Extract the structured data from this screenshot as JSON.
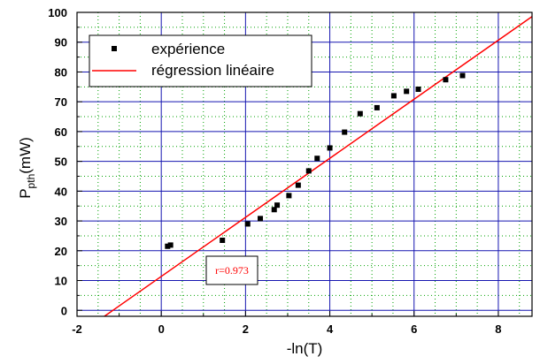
{
  "chart_data": {
    "type": "scatter",
    "xlabel": "-ln(T)",
    "ylabel_main": "P",
    "ylabel_sub": "pth",
    "ylabel_unit": "(mW)",
    "xlim": [
      -2,
      8.8
    ],
    "ylim": [
      -2,
      100
    ],
    "xticks": [
      "-2",
      "0",
      "2",
      "4",
      "6",
      "8"
    ],
    "xtick_values": [
      -2,
      0,
      2,
      4,
      6,
      8
    ],
    "yticks": [
      "0",
      "10",
      "20",
      "30",
      "40",
      "50",
      "60",
      "70",
      "80",
      "90",
      "100"
    ],
    "ytick_values": [
      0,
      10,
      20,
      30,
      40,
      50,
      60,
      70,
      80,
      90,
      100
    ],
    "grid": true,
    "legend_position": "top-left",
    "series": [
      {
        "name": "expérience",
        "kind": "points",
        "color": "#000000",
        "points": [
          [
            0.15,
            21.5
          ],
          [
            0.22,
            21.9
          ],
          [
            1.45,
            23.5
          ],
          [
            2.05,
            29
          ],
          [
            2.35,
            30.8
          ],
          [
            2.68,
            33.8
          ],
          [
            2.75,
            35.3
          ],
          [
            3.03,
            38.5
          ],
          [
            3.25,
            42
          ],
          [
            3.5,
            46.8
          ],
          [
            3.7,
            51
          ],
          [
            4.0,
            54.5
          ],
          [
            4.35,
            59.8
          ],
          [
            4.72,
            66
          ],
          [
            5.12,
            68
          ],
          [
            5.52,
            72
          ],
          [
            5.82,
            73.5
          ],
          [
            6.1,
            74.2
          ],
          [
            6.75,
            77.4
          ],
          [
            7.15,
            78.8
          ]
        ]
      },
      {
        "name": "régression linéaire",
        "kind": "line",
        "color": "#ff0000",
        "x": [
          -1.35,
          8.8
        ],
        "y": [
          -2,
          98.6
        ]
      }
    ],
    "annotation": {
      "text": "r=0.973",
      "color": "#ff0000"
    }
  }
}
